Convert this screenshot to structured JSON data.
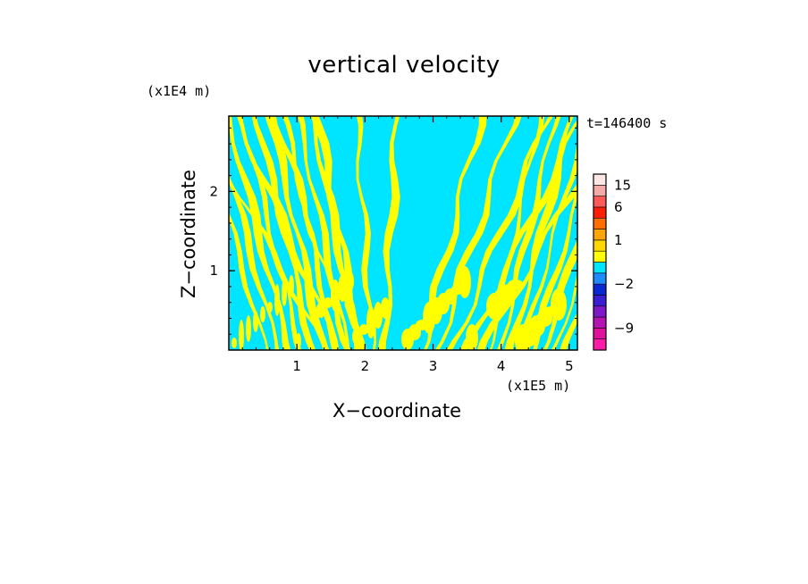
{
  "chart_data": {
    "type": "heatmap",
    "title": "vertical velocity",
    "xlabel": "X−coordinate",
    "ylabel": "Z−coordinate",
    "x_unit_label": "(x1E5 m)",
    "y_unit_label": "(x1E4 m)",
    "time_label": "t=146400 s",
    "xlim": [
      0,
      5.12
    ],
    "ylim": [
      0,
      2.95
    ],
    "x_ticks": [
      1,
      2,
      3,
      4,
      5
    ],
    "x_tick_labels": [
      "1",
      "2",
      "3",
      "4",
      "5"
    ],
    "y_ticks": [
      1,
      2
    ],
    "y_tick_labels": [
      "1",
      "2"
    ],
    "field_colors": {
      "positive": "#ffff00",
      "negative": "#00e5ff"
    },
    "colorbar": {
      "levels": [
        {
          "value": -12,
          "color": "#ff1aa8"
        },
        {
          "value": -9,
          "color": "#e0109c"
        },
        {
          "value": -7,
          "color": "#b414b4"
        },
        {
          "value": -5,
          "color": "#7f18c8"
        },
        {
          "value": -3,
          "color": "#3c1ed2"
        },
        {
          "value": -2,
          "color": "#0a28d2"
        },
        {
          "value": -1,
          "color": "#1e8cff"
        },
        {
          "value": -0.5,
          "color": "#00e5ff"
        },
        {
          "value": 0.5,
          "color": "#ffff00"
        },
        {
          "value": 1,
          "color": "#ffd700"
        },
        {
          "value": 2,
          "color": "#ffa500"
        },
        {
          "value": 4,
          "color": "#ff6e00"
        },
        {
          "value": 6,
          "color": "#ff1e00"
        },
        {
          "value": 10,
          "color": "#ff5a5a"
        },
        {
          "value": 15,
          "color": "#f5aaaa"
        },
        {
          "value": 20,
          "color": "#fde6e6"
        }
      ],
      "tick_labels": [
        "15",
        "6",
        "1",
        "−2",
        "−9"
      ],
      "tick_values": [
        15,
        6,
        1,
        -2,
        -9
      ]
    }
  }
}
